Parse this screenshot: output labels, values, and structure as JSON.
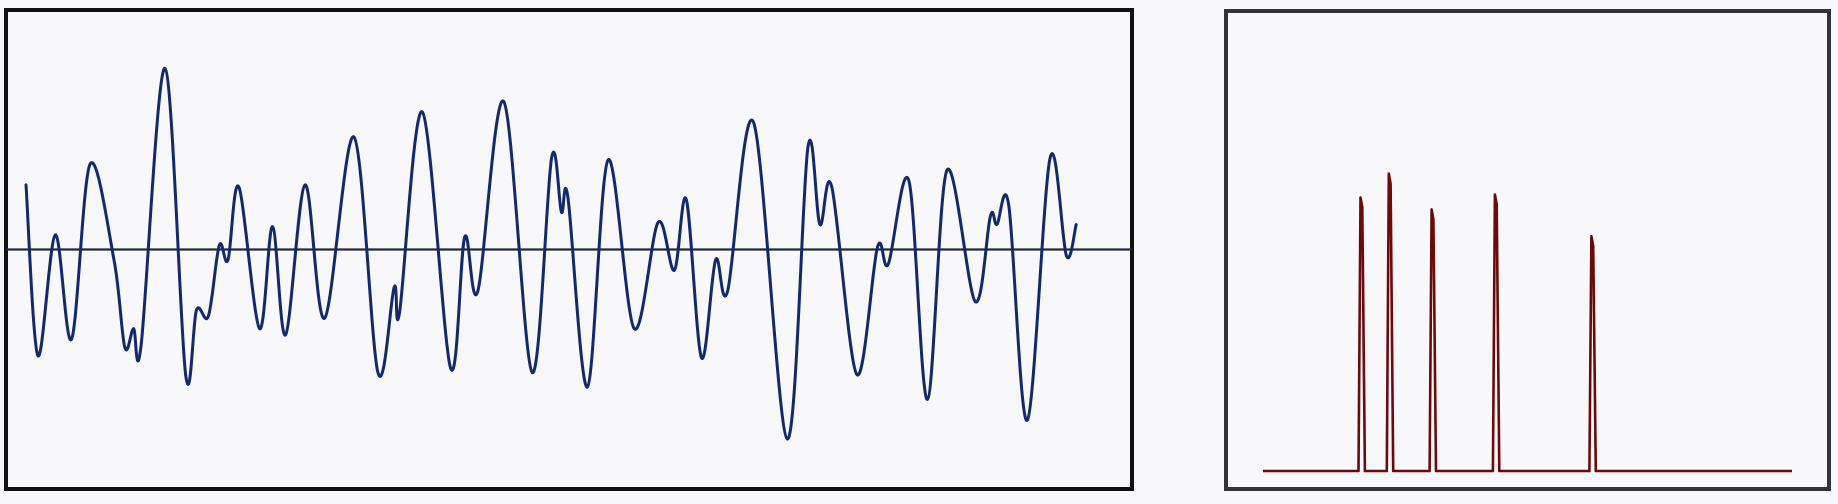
{
  "colors": {
    "background": "#f8f8fb",
    "left_frame": "#111111",
    "right_frame": "#333333",
    "signal_line": "#13296b",
    "axis_line": "#222a3a",
    "spectrum_line": "#6b0a0a"
  },
  "chart_data": [
    {
      "type": "line",
      "title": "",
      "xlabel": "",
      "ylabel": "",
      "grid": false,
      "legend": "none",
      "xlim": [
        0,
        1
      ],
      "ylim": [
        -1.15,
        1.15
      ],
      "zero_line": 0,
      "series": [
        {
          "points": [
            [
              0.0,
              0.31
            ],
            [
              0.011,
              -0.51
            ],
            [
              0.027,
              0.07
            ],
            [
              0.042,
              -0.43
            ],
            [
              0.059,
              0.41
            ],
            [
              0.081,
              -0.05
            ],
            [
              0.091,
              -0.47
            ],
            [
              0.099,
              -0.38
            ],
            [
              0.106,
              -0.46
            ],
            [
              0.128,
              0.87
            ],
            [
              0.147,
              -0.6
            ],
            [
              0.157,
              -0.29
            ],
            [
              0.168,
              -0.32
            ],
            [
              0.178,
              0.02
            ],
            [
              0.186,
              -0.05
            ],
            [
              0.196,
              0.3
            ],
            [
              0.215,
              -0.38
            ],
            [
              0.227,
              0.11
            ],
            [
              0.239,
              -0.41
            ],
            [
              0.257,
              0.31
            ],
            [
              0.275,
              -0.33
            ],
            [
              0.302,
              0.54
            ],
            [
              0.324,
              -0.59
            ],
            [
              0.339,
              -0.18
            ],
            [
              0.344,
              -0.3
            ],
            [
              0.365,
              0.66
            ],
            [
              0.391,
              -0.57
            ],
            [
              0.404,
              0.06
            ],
            [
              0.416,
              -0.2
            ],
            [
              0.44,
              0.71
            ],
            [
              0.466,
              -0.59
            ],
            [
              0.484,
              0.44
            ],
            [
              0.493,
              0.18
            ],
            [
              0.499,
              0.25
            ],
            [
              0.517,
              -0.66
            ],
            [
              0.536,
              0.43
            ],
            [
              0.56,
              -0.38
            ],
            [
              0.582,
              0.13
            ],
            [
              0.597,
              -0.1
            ],
            [
              0.608,
              0.24
            ],
            [
              0.622,
              -0.52
            ],
            [
              0.635,
              -0.05
            ],
            [
              0.646,
              -0.2
            ],
            [
              0.67,
              0.61
            ],
            [
              0.701,
              -0.91
            ],
            [
              0.72,
              0.49
            ],
            [
              0.731,
              0.12
            ],
            [
              0.742,
              0.3
            ],
            [
              0.765,
              -0.6
            ],
            [
              0.784,
              0.01
            ],
            [
              0.794,
              -0.07
            ],
            [
              0.813,
              0.33
            ],
            [
              0.83,
              -0.72
            ],
            [
              0.848,
              0.38
            ],
            [
              0.874,
              -0.25
            ],
            [
              0.888,
              0.16
            ],
            [
              0.894,
              0.12
            ],
            [
              0.905,
              0.21
            ],
            [
              0.922,
              -0.82
            ],
            [
              0.943,
              0.44
            ],
            [
              0.958,
              -0.03
            ],
            [
              0.967,
              0.12
            ]
          ]
        }
      ]
    },
    {
      "type": "line",
      "title": "",
      "xlabel": "",
      "ylabel": "",
      "grid": false,
      "legend": "none",
      "xlim": [
        0,
        1
      ],
      "ylim": [
        0,
        1.1
      ],
      "baseline": 0,
      "peaks": [
        {
          "x": 0.225,
          "height": 0.92
        },
        {
          "x": 0.272,
          "height": 1.0
        },
        {
          "x": 0.343,
          "height": 0.88
        },
        {
          "x": 0.448,
          "height": 0.93
        },
        {
          "x": 0.608,
          "height": 0.79
        }
      ]
    }
  ]
}
